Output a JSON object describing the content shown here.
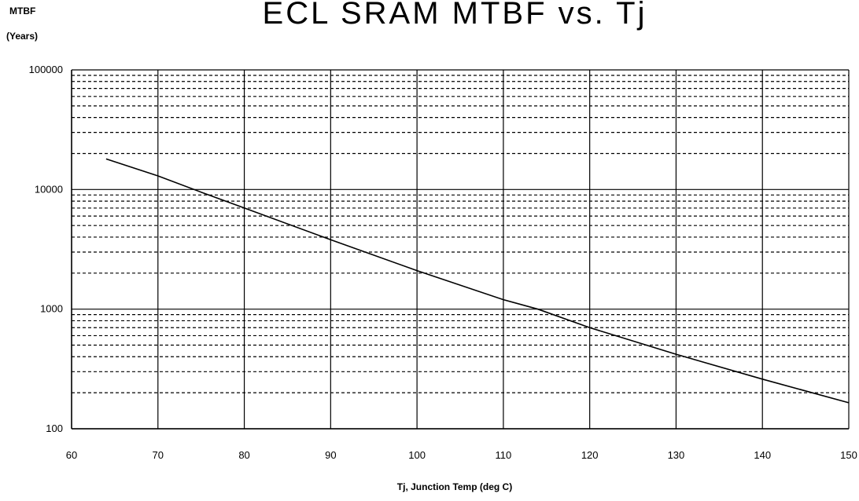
{
  "chart_data": {
    "type": "line",
    "title": "ECL SRAM MTBF vs. Tj",
    "ylabel_line1": "MTBF",
    "ylabel_line2": "(Years)",
    "xlabel": "Tj, Junction Temp (deg C)",
    "x_scale": "linear",
    "y_scale": "log",
    "xlim": [
      60,
      150
    ],
    "ylim": [
      100,
      100000
    ],
    "x_ticks": [
      60,
      70,
      80,
      90,
      100,
      110,
      120,
      130,
      140,
      150
    ],
    "y_ticks": [
      100,
      1000,
      10000,
      100000
    ],
    "grid": true,
    "series": [
      {
        "x": [
          64,
          70,
          75,
          80,
          90,
          100,
          110,
          114,
          120,
          130,
          140,
          150
        ],
        "y": [
          18000,
          13000,
          9500,
          7000,
          3800,
          2100,
          1200,
          1000,
          700,
          420,
          260,
          165
        ]
      }
    ]
  }
}
